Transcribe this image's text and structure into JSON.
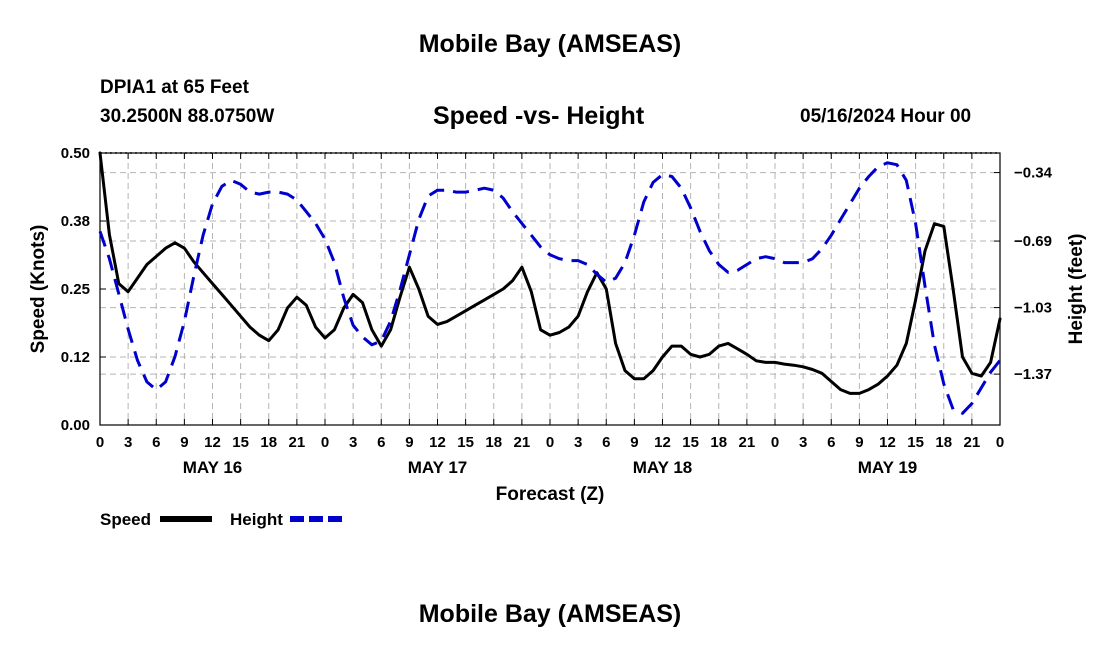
{
  "header": {
    "title": "Mobile Bay (AMSEAS)",
    "station": "DPIA1 at 65 Feet",
    "coords": "30.2500N  88.0750W",
    "subtitle": "Speed -vs- Height",
    "datetime": "05/16/2024 Hour 00",
    "footer_title": "Mobile Bay (AMSEAS)"
  },
  "colors": {
    "speed": "#000000",
    "height": "#0000cc",
    "grid": "#b4b4b4"
  },
  "chart_data": {
    "type": "line",
    "title": "Speed -vs- Height",
    "xlabel": "Forecast (Z)",
    "ylabel": "Speed (Knots)",
    "y2label": "Height (feet)",
    "xlim": [
      0,
      96
    ],
    "ylim": [
      0.0,
      0.5
    ],
    "y2lim": [
      -1.63,
      -0.24
    ],
    "x_ticks": [
      0,
      3,
      6,
      9,
      12,
      15,
      18,
      21,
      24,
      27,
      30,
      33,
      36,
      39,
      42,
      45,
      48,
      51,
      54,
      57,
      60,
      63,
      66,
      69,
      72,
      75,
      78,
      81,
      84,
      87,
      90,
      93,
      96
    ],
    "x_tick_labels": [
      "0",
      "3",
      "6",
      "9",
      "12",
      "15",
      "18",
      "21",
      "0",
      "3",
      "6",
      "9",
      "12",
      "15",
      "18",
      "21",
      "0",
      "3",
      "6",
      "9",
      "12",
      "15",
      "18",
      "21",
      "0",
      "3",
      "6",
      "9",
      "12",
      "15",
      "18",
      "21",
      "0"
    ],
    "day_labels": [
      {
        "x": 12,
        "label": "MAY 16"
      },
      {
        "x": 36,
        "label": "MAY 17"
      },
      {
        "x": 60,
        "label": "MAY 18"
      },
      {
        "x": 84,
        "label": "MAY 19"
      }
    ],
    "y_ticks": [
      0.0,
      0.125,
      0.25,
      0.375,
      0.5
    ],
    "y_tick_labels": [
      "0.00",
      "0.12",
      "0.25",
      "0.38",
      "0.50"
    ],
    "y2_ticks": [
      -1.37,
      -1.03,
      -0.69,
      -0.34
    ],
    "y2_tick_labels": [
      "−1.37",
      "−1.03",
      "−0.69",
      "−0.34"
    ],
    "legend": [
      {
        "name": "Speed",
        "style": "solid"
      },
      {
        "name": "Height",
        "style": "dashed"
      }
    ],
    "series": [
      {
        "name": "Speed",
        "axis": "left",
        "style": "solid",
        "x": [
          0,
          1,
          2,
          3,
          4,
          5,
          6,
          7,
          8,
          9,
          10,
          11,
          12,
          13,
          14,
          15,
          16,
          17,
          18,
          19,
          20,
          21,
          22,
          23,
          24,
          25,
          26,
          27,
          28,
          29,
          30,
          31,
          32,
          33,
          34,
          35,
          36,
          37,
          38,
          39,
          40,
          41,
          42,
          43,
          44,
          45,
          46,
          47,
          48,
          49,
          50,
          51,
          52,
          53,
          54,
          55,
          56,
          57,
          58,
          59,
          60,
          61,
          62,
          63,
          64,
          65,
          66,
          67,
          68,
          69,
          70,
          71,
          72,
          73,
          74,
          75,
          76,
          77,
          78,
          79,
          80,
          81,
          82,
          83,
          84,
          85,
          86,
          87,
          88,
          89,
          90,
          91,
          92,
          93,
          94,
          95,
          96
        ],
        "values": [
          0.5,
          0.35,
          0.26,
          0.245,
          0.27,
          0.295,
          0.31,
          0.325,
          0.335,
          0.325,
          0.3,
          0.28,
          0.26,
          0.24,
          0.22,
          0.2,
          0.18,
          0.165,
          0.155,
          0.175,
          0.215,
          0.235,
          0.22,
          0.18,
          0.16,
          0.175,
          0.215,
          0.24,
          0.225,
          0.175,
          0.145,
          0.175,
          0.235,
          0.29,
          0.25,
          0.2,
          0.185,
          0.19,
          0.2,
          0.21,
          0.22,
          0.23,
          0.24,
          0.25,
          0.265,
          0.29,
          0.245,
          0.175,
          0.165,
          0.17,
          0.18,
          0.2,
          0.245,
          0.28,
          0.25,
          0.15,
          0.1,
          0.085,
          0.085,
          0.1,
          0.125,
          0.145,
          0.145,
          0.13,
          0.125,
          0.13,
          0.145,
          0.15,
          0.14,
          0.13,
          0.118,
          0.115,
          0.115,
          0.112,
          0.11,
          0.107,
          0.102,
          0.095,
          0.08,
          0.065,
          0.058,
          0.058,
          0.065,
          0.075,
          0.09,
          0.11,
          0.15,
          0.23,
          0.32,
          0.37,
          0.365,
          0.25,
          0.125,
          0.095,
          0.09,
          0.115,
          0.195
        ]
      },
      {
        "name": "Height",
        "axis": "right",
        "style": "dashed",
        "x": [
          0,
          1,
          2,
          3,
          4,
          5,
          6,
          7,
          8,
          9,
          10,
          11,
          12,
          13,
          14,
          15,
          16,
          17,
          18,
          19,
          20,
          21,
          22,
          23,
          24,
          25,
          26,
          27,
          28,
          29,
          30,
          31,
          32,
          33,
          34,
          35,
          36,
          37,
          38,
          39,
          40,
          41,
          42,
          43,
          44,
          45,
          46,
          47,
          48,
          49,
          50,
          51,
          52,
          53,
          54,
          55,
          56,
          57,
          58,
          59,
          60,
          61,
          62,
          63,
          64,
          65,
          66,
          67,
          68,
          69,
          70,
          71,
          72,
          73,
          74,
          75,
          76,
          77,
          78,
          79,
          80,
          81,
          82,
          83,
          84,
          85,
          86,
          87,
          88,
          89,
          90,
          91,
          92,
          93,
          94,
          95,
          96
        ],
        "values": [
          -0.64,
          -0.78,
          -0.96,
          -1.14,
          -1.3,
          -1.41,
          -1.45,
          -1.41,
          -1.28,
          -1.1,
          -0.87,
          -0.66,
          -0.5,
          -0.41,
          -0.38,
          -0.4,
          -0.44,
          -0.45,
          -0.44,
          -0.44,
          -0.45,
          -0.48,
          -0.54,
          -0.6,
          -0.68,
          -0.8,
          -0.98,
          -1.12,
          -1.18,
          -1.22,
          -1.2,
          -1.1,
          -0.94,
          -0.76,
          -0.58,
          -0.46,
          -0.43,
          -0.43,
          -0.44,
          -0.44,
          -0.43,
          -0.42,
          -0.43,
          -0.47,
          -0.54,
          -0.6,
          -0.66,
          -0.72,
          -0.76,
          -0.78,
          -0.79,
          -0.79,
          -0.81,
          -0.86,
          -0.9,
          -0.88,
          -0.8,
          -0.66,
          -0.49,
          -0.39,
          -0.35,
          -0.36,
          -0.42,
          -0.52,
          -0.64,
          -0.74,
          -0.81,
          -0.85,
          -0.84,
          -0.81,
          -0.78,
          -0.77,
          -0.78,
          -0.8,
          -0.8,
          -0.8,
          -0.78,
          -0.73,
          -0.66,
          -0.58,
          -0.5,
          -0.42,
          -0.36,
          -0.31,
          -0.29,
          -0.3,
          -0.38,
          -0.6,
          -0.92,
          -1.22,
          -1.42,
          -1.55,
          -1.57,
          -1.52,
          -1.44,
          -1.36,
          -1.3
        ]
      }
    ]
  }
}
